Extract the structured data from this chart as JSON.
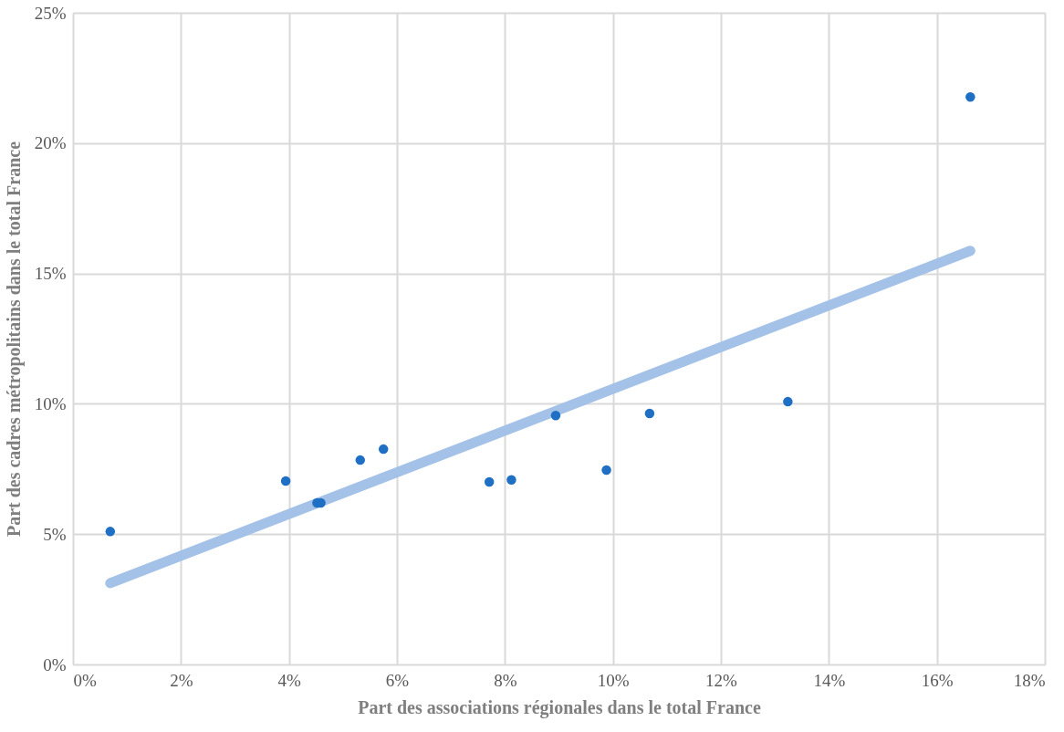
{
  "chart_data": {
    "type": "scatter",
    "xlabel": "Part des associations régionales dans le total France",
    "ylabel": "Part des cadres métropolitains dans le total France",
    "xlim": [
      0,
      18
    ],
    "ylim": [
      0,
      25
    ],
    "xticks": [
      {
        "value": 0,
        "label": "0%"
      },
      {
        "value": 2,
        "label": "2%"
      },
      {
        "value": 4,
        "label": "4%"
      },
      {
        "value": 6,
        "label": "6%"
      },
      {
        "value": 8,
        "label": "8%"
      },
      {
        "value": 10,
        "label": "10%"
      },
      {
        "value": 12,
        "label": "12%"
      },
      {
        "value": 14,
        "label": "14%"
      },
      {
        "value": 16,
        "label": "16%"
      },
      {
        "value": 18,
        "label": "18%"
      }
    ],
    "yticks": [
      {
        "value": 0,
        "label": "0%"
      },
      {
        "value": 5,
        "label": "5%"
      },
      {
        "value": 10,
        "label": "10%"
      },
      {
        "value": 15,
        "label": "15%"
      },
      {
        "value": 20,
        "label": "20%"
      },
      {
        "value": 25,
        "label": "25%"
      }
    ],
    "grid": true,
    "series": [
      {
        "marker": "circle",
        "color": "#1f6fc5",
        "x": [
          0.69,
          3.94,
          4.52,
          4.59,
          5.32,
          5.75,
          7.71,
          8.12,
          8.94,
          9.88,
          10.68,
          13.24,
          16.62
        ],
        "values": [
          5.1,
          7.04,
          6.2,
          6.2,
          7.84,
          8.26,
          7.0,
          7.08,
          9.55,
          7.46,
          9.63,
          10.08,
          21.77
        ]
      },
      {
        "type": "line",
        "color": "#a4c2e8",
        "x": [
          0.69,
          16.62
        ],
        "values": [
          3.12,
          15.87
        ]
      }
    ]
  }
}
